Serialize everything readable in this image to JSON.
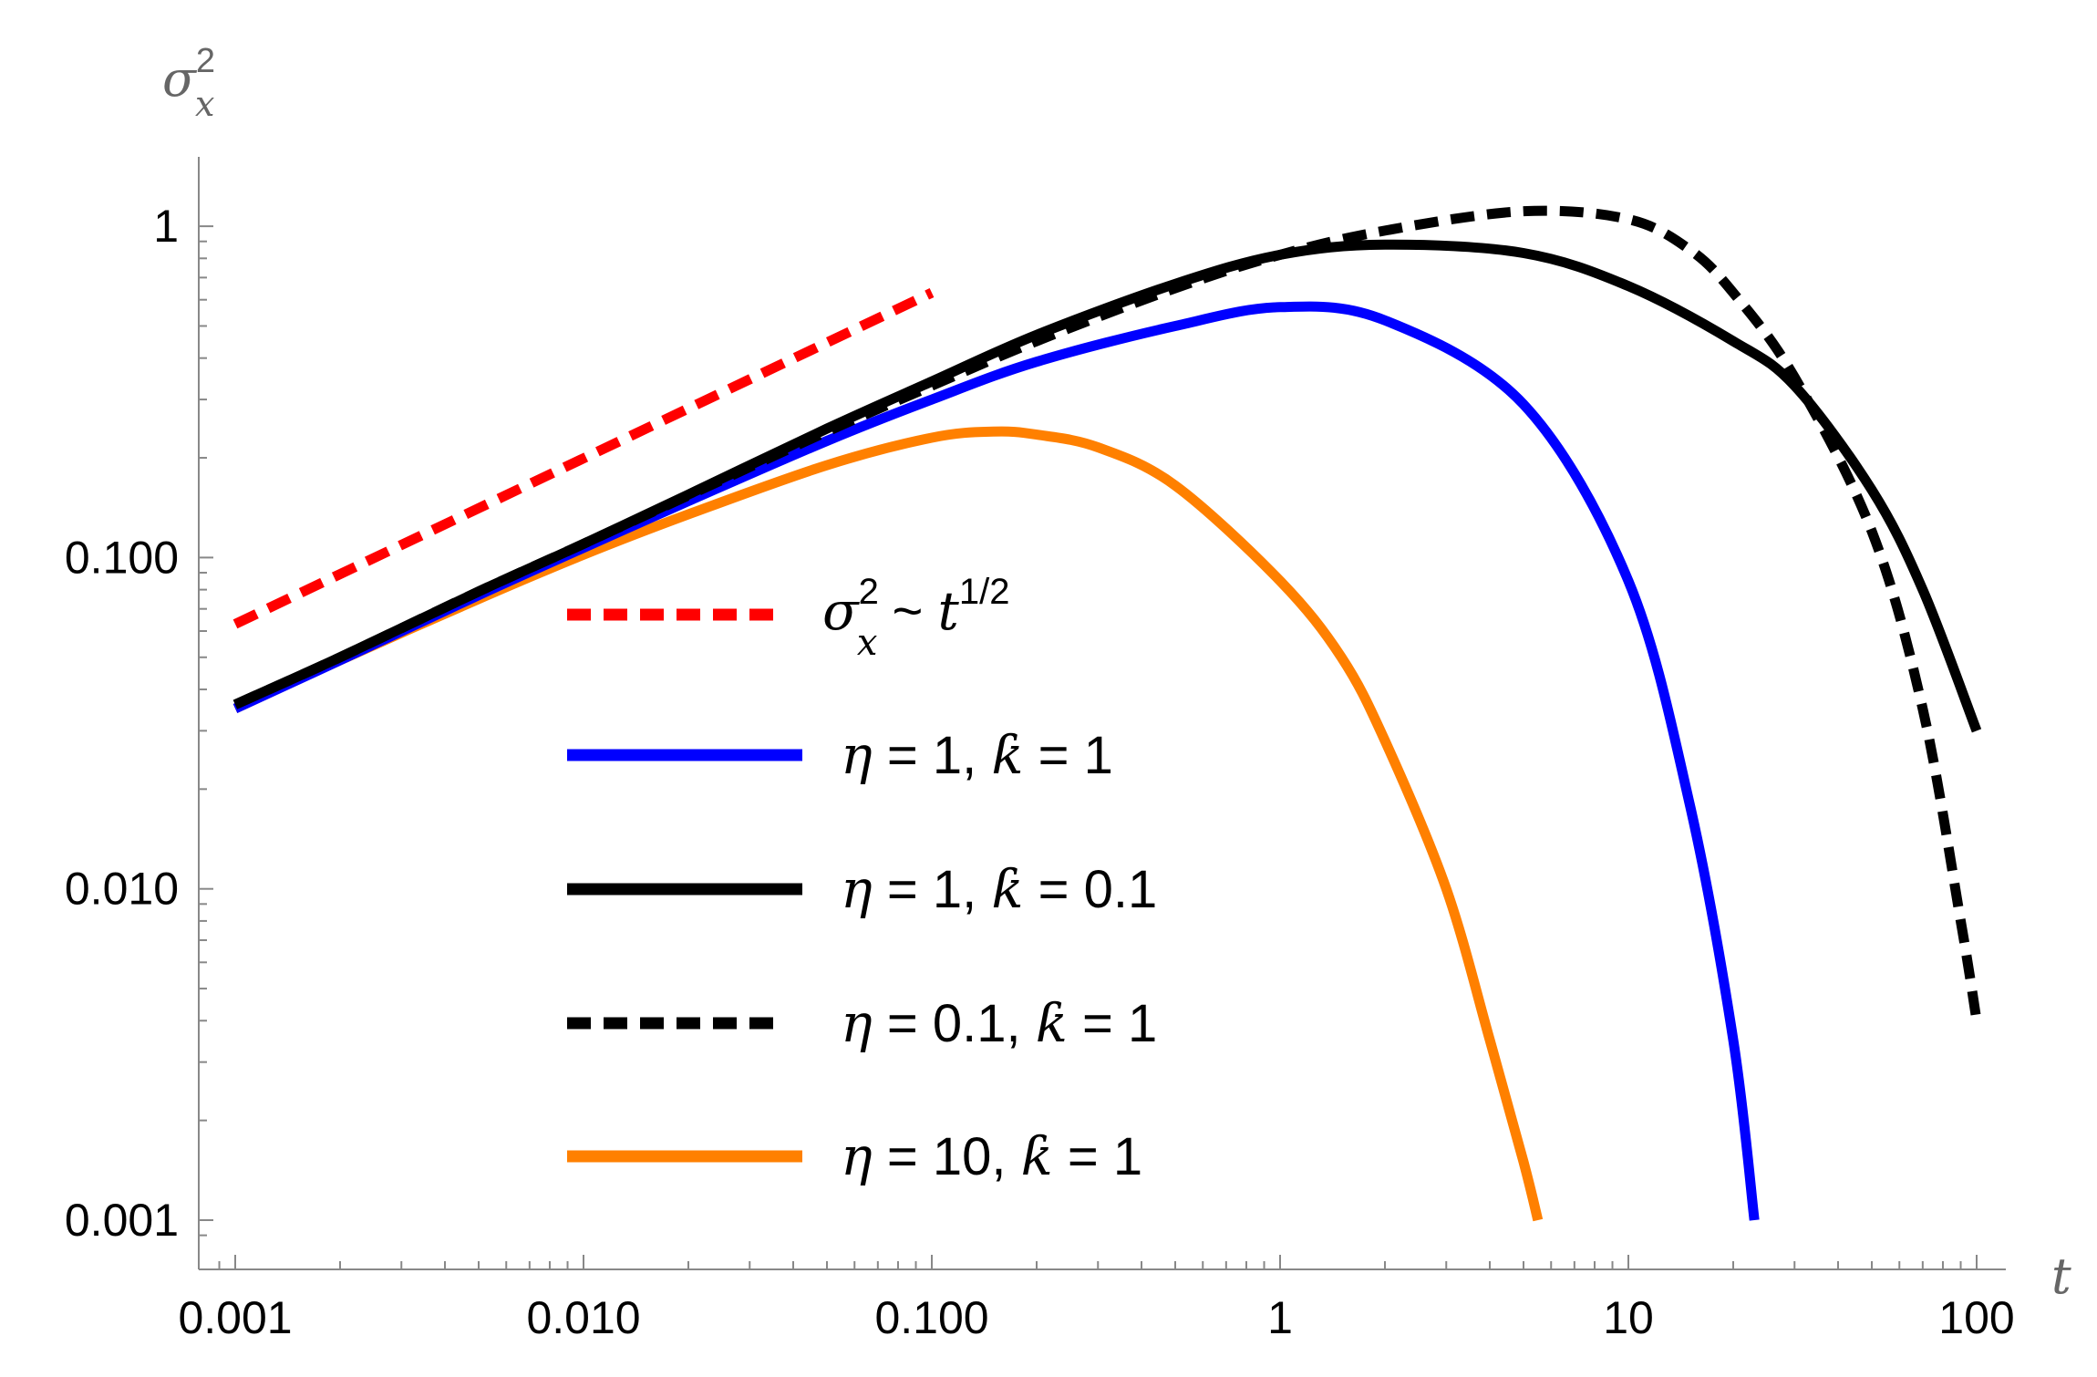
{
  "chart_data": {
    "type": "line",
    "title": "",
    "xlabel": "t",
    "ylabel": "σ_x^2",
    "x_scale": "log",
    "y_scale": "log",
    "xlim": [
      0.00085,
      120
    ],
    "ylim": [
      0.00085,
      1.7
    ],
    "x_ticks": [
      0.001,
      0.01,
      0.1,
      1,
      10,
      100
    ],
    "x_tick_labels": [
      "0.001",
      "0.010",
      "0.100",
      "1",
      "10",
      "100"
    ],
    "y_ticks": [
      0.001,
      0.01,
      0.1,
      1
    ],
    "y_tick_labels": [
      "0.001",
      "0.010",
      "0.100",
      "1"
    ],
    "grid": false,
    "legend_position": "center-left",
    "series": [
      {
        "name": "σ_x^2 ~ t^{1/2}",
        "color": "#ff0000",
        "dash": "dashed",
        "x": [
          0.001,
          0.1
        ],
        "y": [
          0.063,
          0.63
        ]
      },
      {
        "name": "η = 1, ƙ = 1",
        "color": "#0000ff",
        "dash": "solid",
        "x": [
          0.001,
          0.002,
          0.005,
          0.01,
          0.02,
          0.05,
          0.1,
          0.2,
          0.5,
          1,
          2,
          5,
          10,
          15,
          20,
          23
        ],
        "y": [
          0.035,
          0.049,
          0.077,
          0.107,
          0.148,
          0.225,
          0.3,
          0.39,
          0.5,
          0.57,
          0.52,
          0.29,
          0.085,
          0.018,
          0.0035,
          0.001
        ]
      },
      {
        "name": "η = 1, ƙ = 0.1",
        "color": "#000000",
        "dash": "solid",
        "x": [
          0.001,
          0.002,
          0.005,
          0.01,
          0.02,
          0.05,
          0.1,
          0.2,
          0.5,
          1,
          2,
          5,
          10,
          20,
          30,
          50,
          70,
          100
        ],
        "y": [
          0.036,
          0.05,
          0.079,
          0.11,
          0.155,
          0.245,
          0.34,
          0.47,
          0.67,
          0.82,
          0.88,
          0.83,
          0.66,
          0.45,
          0.33,
          0.16,
          0.08,
          0.03
        ]
      },
      {
        "name": "η = 0.1, ƙ = 1",
        "color": "#000000",
        "dash": "dashed",
        "x": [
          0.001,
          0.002,
          0.005,
          0.01,
          0.02,
          0.05,
          0.1,
          0.2,
          0.5,
          1,
          2,
          5,
          10,
          15,
          20,
          30,
          50,
          70,
          90,
          100
        ],
        "y": [
          0.036,
          0.05,
          0.079,
          0.11,
          0.154,
          0.24,
          0.33,
          0.45,
          0.65,
          0.82,
          0.97,
          1.11,
          1.05,
          0.85,
          0.63,
          0.35,
          0.12,
          0.035,
          0.008,
          0.004
        ]
      },
      {
        "name": "η = 10, ƙ = 1",
        "color": "#ff8000",
        "dash": "solid",
        "x": [
          0.001,
          0.002,
          0.005,
          0.01,
          0.02,
          0.05,
          0.1,
          0.15,
          0.2,
          0.3,
          0.5,
          1,
          1.5,
          2,
          3,
          4,
          5,
          5.5
        ],
        "y": [
          0.035,
          0.049,
          0.075,
          0.102,
          0.135,
          0.19,
          0.23,
          0.24,
          0.235,
          0.215,
          0.165,
          0.085,
          0.05,
          0.028,
          0.01,
          0.0035,
          0.0015,
          0.001
        ]
      }
    ]
  }
}
